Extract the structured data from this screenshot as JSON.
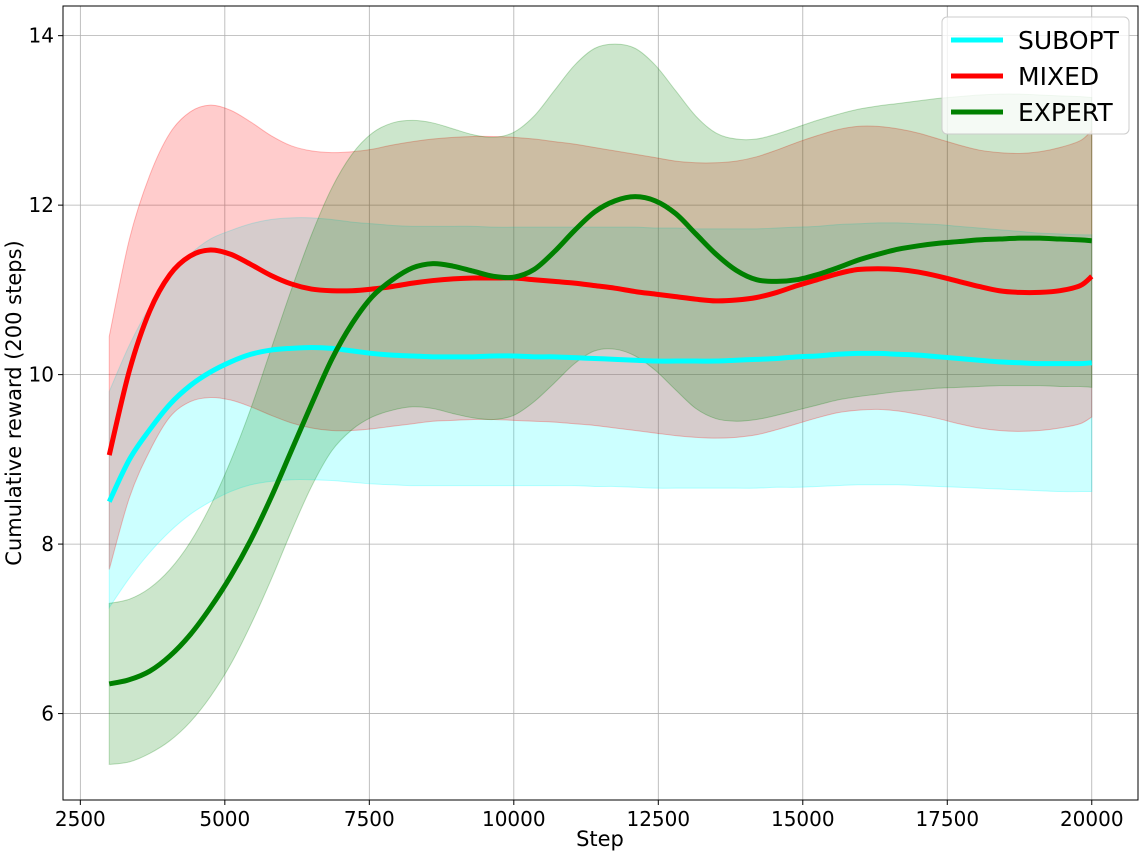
{
  "chart_data": {
    "type": "line",
    "title": "",
    "xlabel": "Step",
    "ylabel": "Cumulative reward (200 steps)",
    "xlim": [
      2200,
      20800
    ],
    "ylim": [
      4.98,
      14.35
    ],
    "xticks": [
      2500,
      5000,
      7500,
      10000,
      12500,
      15000,
      17500,
      20000
    ],
    "yticks": [
      6,
      8,
      10,
      12,
      14
    ],
    "grid": true,
    "legend_position": "top-right",
    "series": [
      {
        "name": "SUBOPT",
        "color": "#00ffff",
        "band_color": "#00ffff",
        "x": [
          3000,
          3350,
          3700,
          4050,
          4400,
          4750,
          5100,
          5450,
          5800,
          6150,
          6500,
          6850,
          7200,
          7550,
          7900,
          8250,
          8600,
          8950,
          9300,
          9650,
          10000,
          10350,
          10700,
          11050,
          11400,
          11750,
          12100,
          12450,
          12800,
          13150,
          13500,
          13850,
          14200,
          14550,
          14900,
          15250,
          15600,
          15950,
          16300,
          16650,
          17000,
          17350,
          17700,
          18050,
          18400,
          18750,
          19100,
          19450,
          19800,
          20000
        ],
        "mean": [
          8.5,
          9.0,
          9.35,
          9.65,
          9.87,
          10.03,
          10.15,
          10.24,
          10.29,
          10.31,
          10.32,
          10.31,
          10.28,
          10.25,
          10.23,
          10.22,
          10.21,
          10.21,
          10.21,
          10.22,
          10.22,
          10.21,
          10.21,
          10.2,
          10.19,
          10.18,
          10.17,
          10.16,
          10.16,
          10.16,
          10.16,
          10.17,
          10.18,
          10.19,
          10.21,
          10.22,
          10.24,
          10.25,
          10.25,
          10.24,
          10.23,
          10.21,
          10.19,
          10.17,
          10.15,
          10.14,
          10.13,
          10.13,
          10.13,
          10.14
        ],
        "upper": [
          9.8,
          10.35,
          10.8,
          11.15,
          11.42,
          11.6,
          11.7,
          11.78,
          11.83,
          11.85,
          11.85,
          11.83,
          11.8,
          11.78,
          11.76,
          11.75,
          11.75,
          11.75,
          11.75,
          11.74,
          11.74,
          11.74,
          11.74,
          11.74,
          11.74,
          11.74,
          11.74,
          11.73,
          11.73,
          11.72,
          11.72,
          11.72,
          11.72,
          11.73,
          11.74,
          11.75,
          11.77,
          11.78,
          11.79,
          11.79,
          11.78,
          11.77,
          11.75,
          11.73,
          11.71,
          11.69,
          11.67,
          11.66,
          11.65,
          11.65
        ],
        "lower": [
          7.25,
          7.6,
          7.9,
          8.15,
          8.35,
          8.5,
          8.62,
          8.7,
          8.74,
          8.76,
          8.76,
          8.75,
          8.73,
          8.71,
          8.7,
          8.69,
          8.69,
          8.69,
          8.69,
          8.69,
          8.69,
          8.69,
          8.69,
          8.69,
          8.68,
          8.68,
          8.67,
          8.66,
          8.66,
          8.66,
          8.66,
          8.66,
          8.66,
          8.67,
          8.67,
          8.68,
          8.69,
          8.7,
          8.7,
          8.7,
          8.69,
          8.68,
          8.67,
          8.66,
          8.65,
          8.64,
          8.63,
          8.62,
          8.62,
          8.62
        ]
      },
      {
        "name": "MIXED",
        "color": "#ff0000",
        "band_color": "#ff0000",
        "x": [
          3000,
          3350,
          3700,
          4050,
          4400,
          4750,
          5100,
          5450,
          5800,
          6150,
          6500,
          6850,
          7200,
          7550,
          7900,
          8250,
          8600,
          8950,
          9300,
          9650,
          10000,
          10350,
          10700,
          11050,
          11400,
          11750,
          12100,
          12450,
          12800,
          13150,
          13500,
          13850,
          14200,
          14550,
          14900,
          15250,
          15600,
          15950,
          16300,
          16650,
          17000,
          17350,
          17700,
          18050,
          18400,
          18750,
          19100,
          19450,
          19800,
          20000
        ],
        "mean": [
          9.05,
          10.05,
          10.75,
          11.18,
          11.4,
          11.47,
          11.42,
          11.3,
          11.17,
          11.07,
          11.01,
          10.99,
          10.99,
          11.01,
          11.04,
          11.08,
          11.11,
          11.13,
          11.14,
          11.14,
          11.14,
          11.12,
          11.1,
          11.08,
          11.05,
          11.02,
          10.98,
          10.95,
          10.92,
          10.89,
          10.87,
          10.88,
          10.91,
          10.97,
          11.05,
          11.12,
          11.19,
          11.24,
          11.25,
          11.24,
          11.21,
          11.16,
          11.1,
          11.04,
          10.99,
          10.97,
          10.97,
          10.99,
          11.05,
          11.16
        ],
        "upper": [
          10.45,
          11.6,
          12.35,
          12.85,
          13.1,
          13.18,
          13.12,
          12.98,
          12.82,
          12.7,
          12.64,
          12.62,
          12.63,
          12.66,
          12.71,
          12.75,
          12.78,
          12.8,
          12.81,
          12.81,
          12.8,
          12.78,
          12.75,
          12.72,
          12.68,
          12.64,
          12.6,
          12.56,
          12.52,
          12.5,
          12.5,
          12.52,
          12.57,
          12.65,
          12.74,
          12.82,
          12.89,
          12.93,
          12.93,
          12.9,
          12.85,
          12.78,
          12.71,
          12.65,
          12.62,
          12.61,
          12.63,
          12.68,
          12.76,
          12.88
        ],
        "lower": [
          7.7,
          8.55,
          9.1,
          9.5,
          9.68,
          9.73,
          9.7,
          9.62,
          9.52,
          9.43,
          9.37,
          9.34,
          9.34,
          9.36,
          9.39,
          9.42,
          9.45,
          9.46,
          9.47,
          9.47,
          9.46,
          9.45,
          9.44,
          9.42,
          9.4,
          9.37,
          9.34,
          9.31,
          9.28,
          9.26,
          9.25,
          9.26,
          9.29,
          9.35,
          9.42,
          9.49,
          9.55,
          9.58,
          9.59,
          9.57,
          9.53,
          9.48,
          9.42,
          9.37,
          9.34,
          9.33,
          9.34,
          9.37,
          9.42,
          9.5
        ]
      },
      {
        "name": "EXPERT",
        "color": "#008000",
        "band_color": "#008000",
        "x": [
          3000,
          3350,
          3700,
          4050,
          4400,
          4750,
          5100,
          5450,
          5800,
          6150,
          6500,
          6850,
          7200,
          7550,
          7900,
          8250,
          8600,
          8950,
          9300,
          9650,
          10000,
          10350,
          10700,
          11050,
          11400,
          11750,
          12100,
          12450,
          12800,
          13150,
          13500,
          13850,
          14200,
          14550,
          14900,
          15250,
          15600,
          15950,
          16300,
          16650,
          17000,
          17350,
          17700,
          18050,
          18400,
          18750,
          19100,
          19450,
          19800,
          20000
        ],
        "mean": [
          6.35,
          6.4,
          6.5,
          6.68,
          6.93,
          7.25,
          7.62,
          8.05,
          8.55,
          9.1,
          9.65,
          10.18,
          10.6,
          10.92,
          11.12,
          11.26,
          11.31,
          11.28,
          11.22,
          11.16,
          11.15,
          11.24,
          11.45,
          11.7,
          11.92,
          12.05,
          12.1,
          12.05,
          11.9,
          11.66,
          11.42,
          11.23,
          11.12,
          11.1,
          11.12,
          11.18,
          11.26,
          11.35,
          11.42,
          11.48,
          11.52,
          11.55,
          11.57,
          11.59,
          11.6,
          11.61,
          11.61,
          11.6,
          11.59,
          11.58
        ],
        "upper": [
          7.3,
          7.35,
          7.48,
          7.7,
          8.02,
          8.45,
          8.98,
          9.6,
          10.3,
          11.0,
          11.65,
          12.2,
          12.6,
          12.85,
          12.97,
          13.0,
          12.97,
          12.9,
          12.83,
          12.8,
          12.86,
          13.05,
          13.35,
          13.65,
          13.85,
          13.9,
          13.85,
          13.65,
          13.35,
          13.05,
          12.85,
          12.78,
          12.78,
          12.84,
          12.92,
          13.0,
          13.07,
          13.13,
          13.17,
          13.2,
          13.23,
          13.26,
          13.28,
          13.3,
          13.31,
          13.31,
          13.3,
          13.29,
          13.28,
          13.27
        ],
        "lower": [
          5.4,
          5.43,
          5.53,
          5.68,
          5.9,
          6.2,
          6.58,
          7.05,
          7.58,
          8.15,
          8.68,
          9.1,
          9.35,
          9.5,
          9.58,
          9.62,
          9.6,
          9.54,
          9.49,
          9.47,
          9.52,
          9.68,
          9.9,
          10.13,
          10.28,
          10.3,
          10.22,
          10.05,
          9.82,
          9.6,
          9.48,
          9.45,
          9.47,
          9.52,
          9.58,
          9.64,
          9.7,
          9.74,
          9.77,
          9.8,
          9.82,
          9.84,
          9.85,
          9.86,
          9.87,
          9.87,
          9.87,
          9.86,
          9.86,
          9.85
        ]
      }
    ]
  }
}
